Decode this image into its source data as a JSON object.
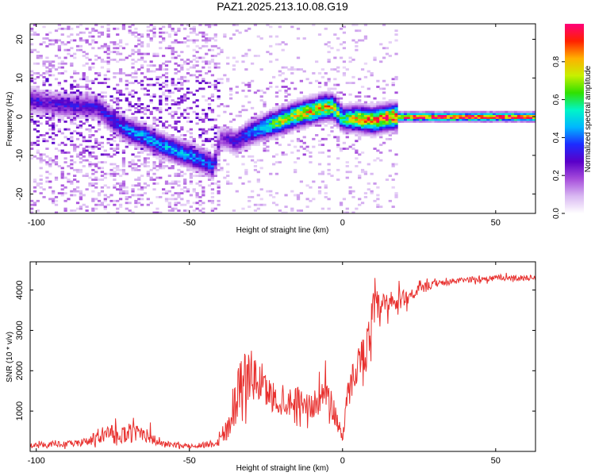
{
  "title": "PAZ1.2025.213.10.08.G19",
  "colors": {
    "snr_line": "#e8312f",
    "colormap": [
      "#ffffff",
      "#d9b8f2",
      "#a64ddb",
      "#5a00c8",
      "#1d2bff",
      "#00b7ff",
      "#00f5c8",
      "#30e000",
      "#c8f000",
      "#ffb000",
      "#ff2000",
      "#ff007a"
    ]
  },
  "chart_data": [
    {
      "type": "heatmap",
      "title": "PAZ1.2025.213.10.08.G19",
      "xlabel": "Height of straight line (km)",
      "ylabel": "Frequency (Hz)",
      "xlim": [
        -102,
        63
      ],
      "ylim": [
        -25,
        24
      ],
      "xticks": [
        -100,
        -50,
        0,
        50
      ],
      "yticks": [
        -20,
        -10,
        0,
        10,
        20
      ],
      "colorbar": {
        "label": "Normalized spectral amplitude",
        "range": [
          0,
          1
        ],
        "ticks": [
          0.0,
          0.2,
          0.4,
          0.6,
          0.8
        ]
      },
      "ridge": {
        "x": [
          -102,
          -96,
          -90,
          -85,
          -80,
          -75,
          -70,
          -65,
          -60,
          -55,
          -50,
          -45,
          -42,
          -40,
          -38,
          -35,
          -30,
          -25,
          -20,
          -15,
          -10,
          -6,
          -3,
          0,
          5,
          10,
          15,
          20,
          40,
          63
        ],
        "y": [
          4.5,
          3.5,
          3,
          2.8,
          2.5,
          -1,
          -3.5,
          -5,
          -7,
          -8.5,
          -10,
          -11.5,
          -13,
          -5.5,
          -5.5,
          -6.5,
          -4,
          -2.5,
          -1,
          0.5,
          1.5,
          2.5,
          2.5,
          -0.5,
          -0.5,
          -1,
          0,
          0,
          0,
          0
        ],
        "amplitude": [
          0.3,
          0.28,
          0.3,
          0.3,
          0.3,
          0.35,
          0.4,
          0.45,
          0.45,
          0.45,
          0.45,
          0.4,
          0.35,
          0.2,
          0.25,
          0.3,
          0.4,
          0.55,
          0.7,
          0.75,
          0.8,
          0.8,
          0.75,
          0.55,
          0.8,
          0.85,
          0.9,
          0.95,
          0.98,
          0.99
        ]
      }
    },
    {
      "type": "line",
      "xlabel": "Height of straight line (km)",
      "ylabel": "SNR (10 * v/v)",
      "xlim": [
        -102,
        63
      ],
      "ylim": [
        0,
        4700
      ],
      "xticks": [
        -100,
        -50,
        0,
        50
      ],
      "yticks": [
        1000,
        2000,
        3000,
        4000
      ],
      "envelope": {
        "x": [
          -102,
          -85,
          -80,
          -75,
          -70,
          -65,
          -60,
          -50,
          -42,
          -38,
          -35,
          -33,
          -30,
          -25,
          -20,
          -15,
          -10,
          -5,
          -2,
          0,
          2,
          5,
          8,
          10,
          12,
          15,
          20,
          25,
          30,
          40,
          50,
          63
        ],
        "mean": [
          150,
          200,
          350,
          450,
          400,
          500,
          200,
          120,
          200,
          500,
          1300,
          1800,
          1900,
          1500,
          1200,
          1300,
          1100,
          1500,
          800,
          400,
          1500,
          2200,
          2600,
          3400,
          3500,
          3600,
          3800,
          4000,
          4150,
          4250,
          4300,
          4300
        ],
        "spread": [
          80,
          120,
          250,
          300,
          300,
          380,
          120,
          60,
          150,
          500,
          900,
          1000,
          900,
          600,
          500,
          500,
          450,
          600,
          500,
          250,
          600,
          600,
          700,
          900,
          700,
          500,
          300,
          200,
          120,
          100,
          100,
          100
        ]
      }
    }
  ]
}
